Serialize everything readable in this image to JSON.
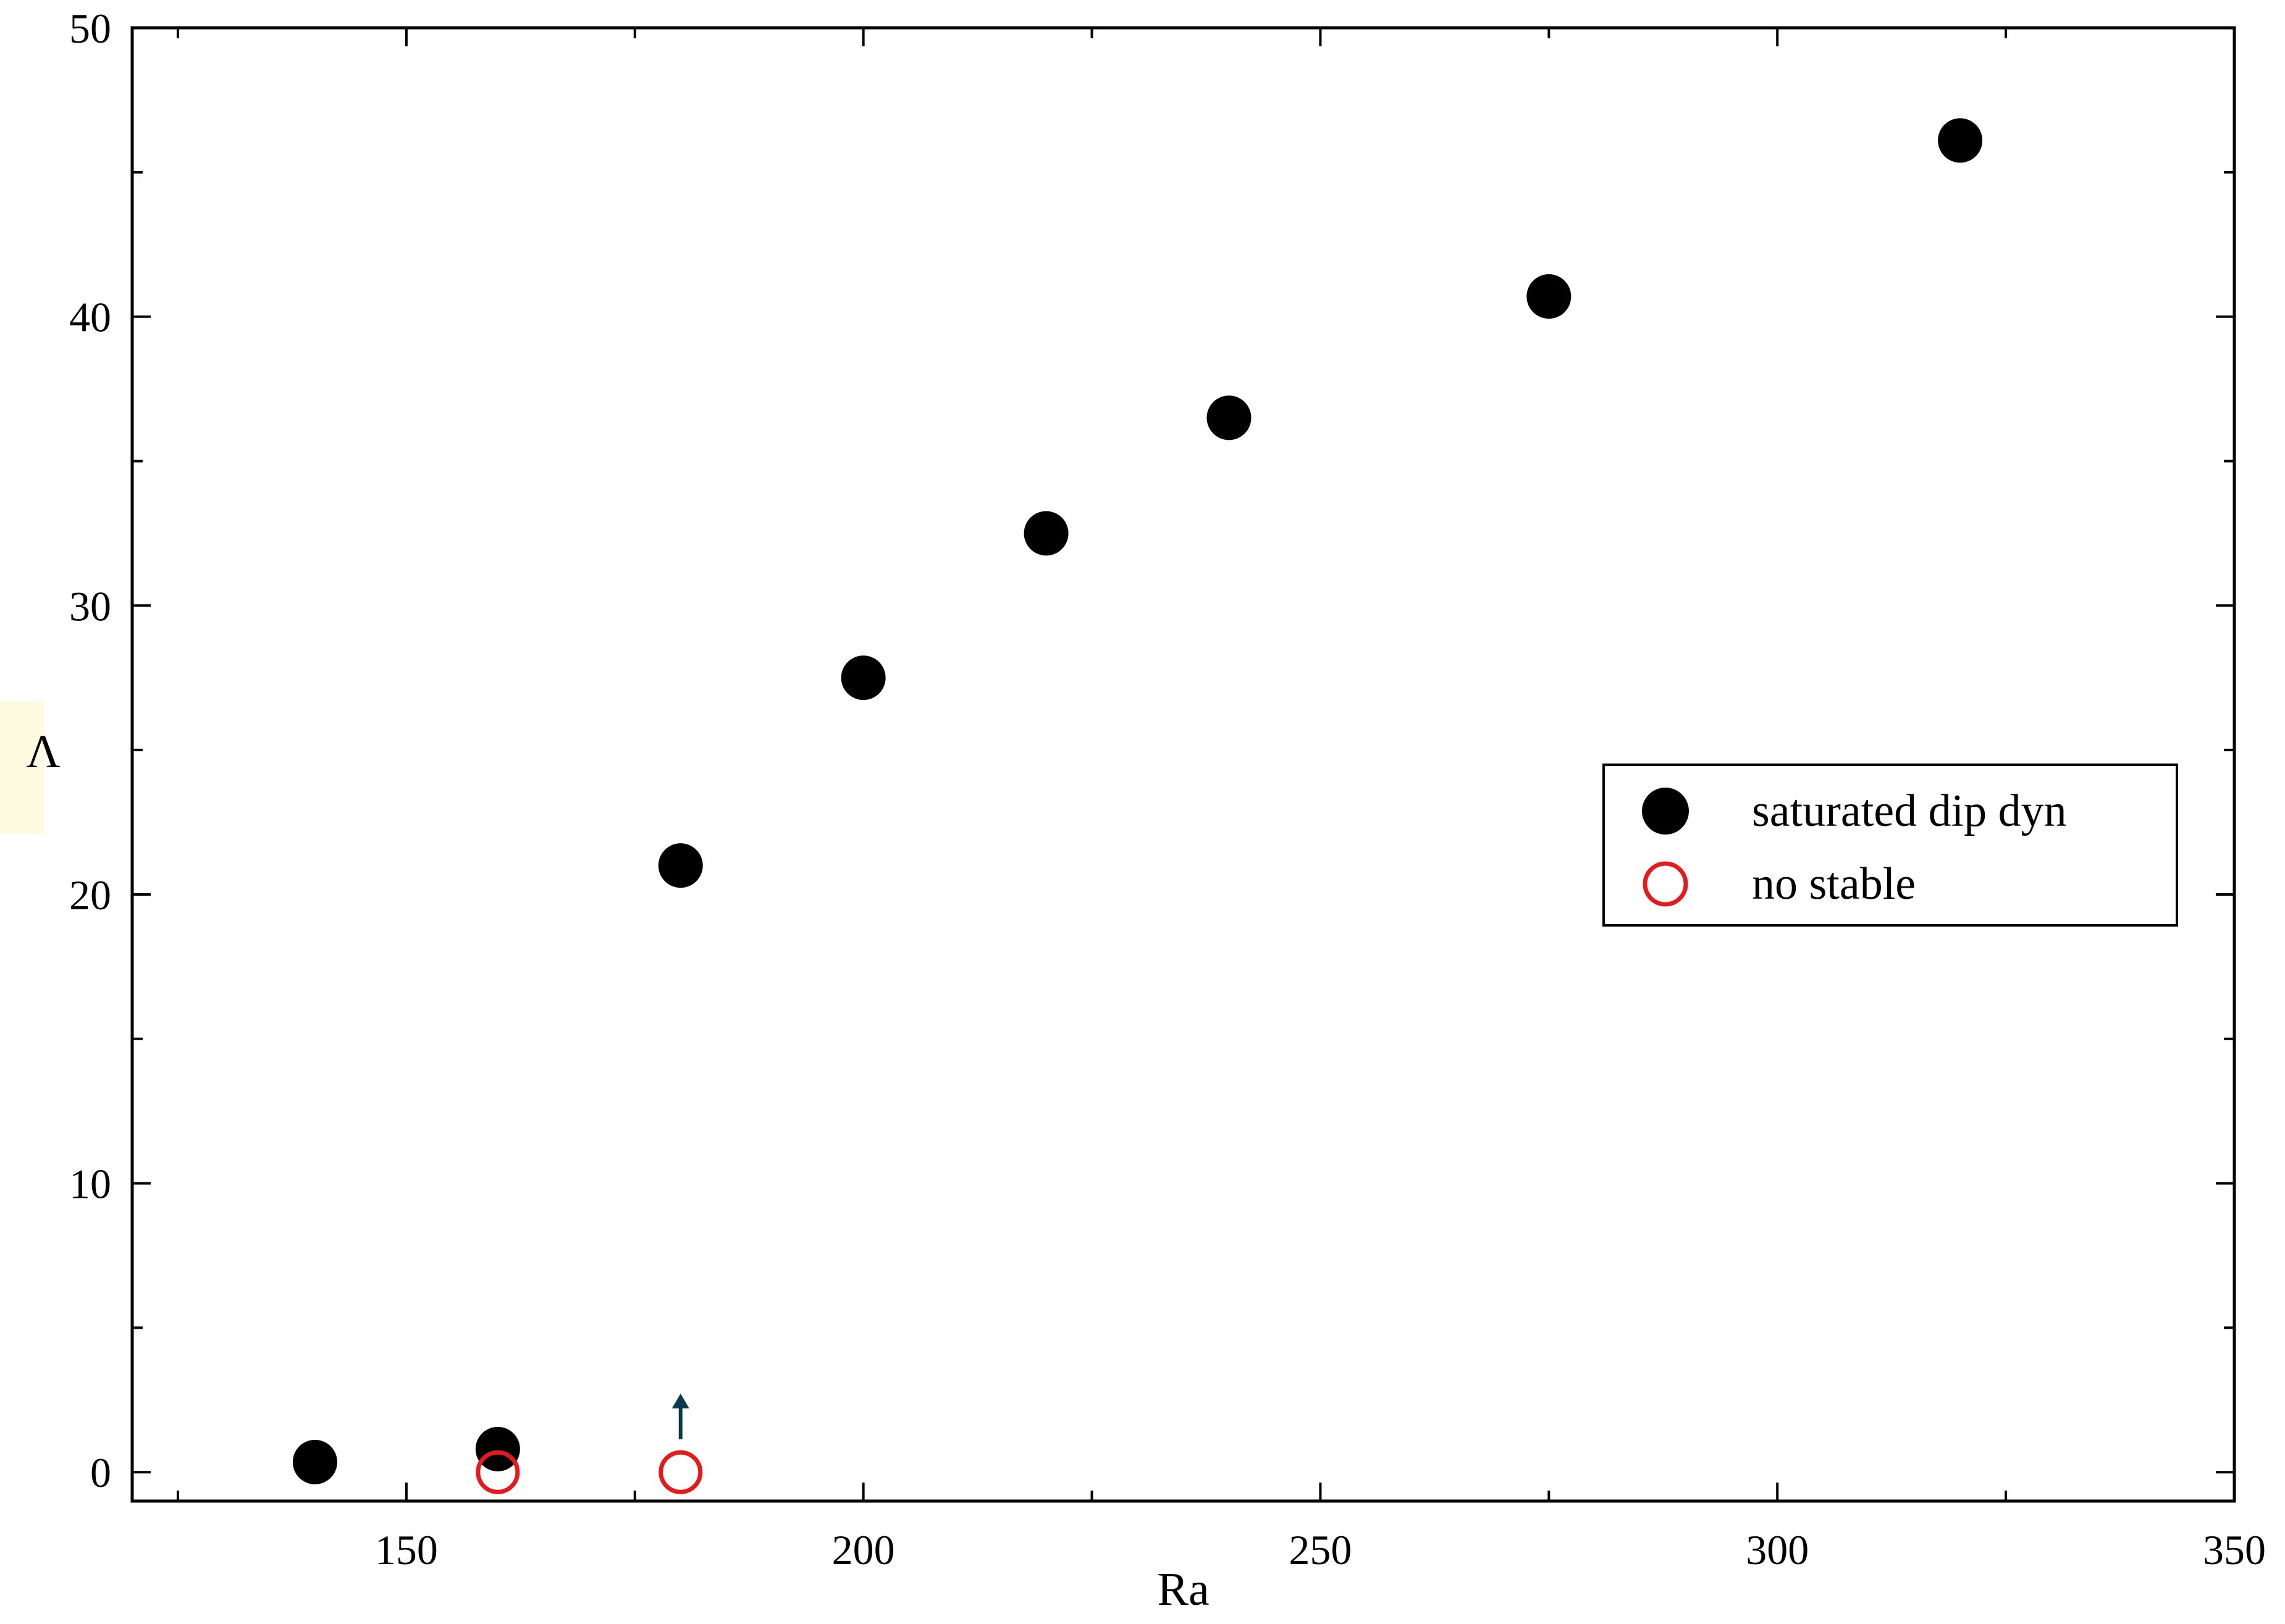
{
  "chart_data": {
    "type": "scatter",
    "title": "",
    "xlabel": "Ra",
    "ylabel": "Λ",
    "xlim": [
      120,
      350
    ],
    "ylim": [
      -1,
      50
    ],
    "x_ticks": [
      150,
      200,
      250,
      300,
      350
    ],
    "x_minor_ticks": [
      125,
      175,
      225,
      275,
      325
    ],
    "y_ticks": [
      0,
      10,
      20,
      30,
      40,
      50
    ],
    "y_minor_ticks": [
      5,
      15,
      25,
      35,
      45
    ],
    "grid": false,
    "legend_position": "right",
    "series": [
      {
        "name": "saturated dip dyn",
        "marker": "filled-circle",
        "color": "#000000",
        "points": [
          {
            "x": 140,
            "y": 0.35
          },
          {
            "x": 160,
            "y": 0.8
          },
          {
            "x": 180,
            "y": 21.0
          },
          {
            "x": 200,
            "y": 27.5
          },
          {
            "x": 220,
            "y": 32.5
          },
          {
            "x": 240,
            "y": 36.5
          },
          {
            "x": 275,
            "y": 40.7
          },
          {
            "x": 320,
            "y": 46.1
          }
        ]
      },
      {
        "name": "no stable",
        "marker": "open-circle",
        "color": "#e41a1c",
        "points": [
          {
            "x": 160,
            "y": 0
          },
          {
            "x": 180,
            "y": 0
          }
        ]
      }
    ],
    "annotations": [
      {
        "type": "arrow-up",
        "x": 180,
        "color": "#0b3a4a"
      }
    ],
    "ylabel_highlight_color": "#fffbe0",
    "ylabel_color": "#0b3a4a"
  }
}
